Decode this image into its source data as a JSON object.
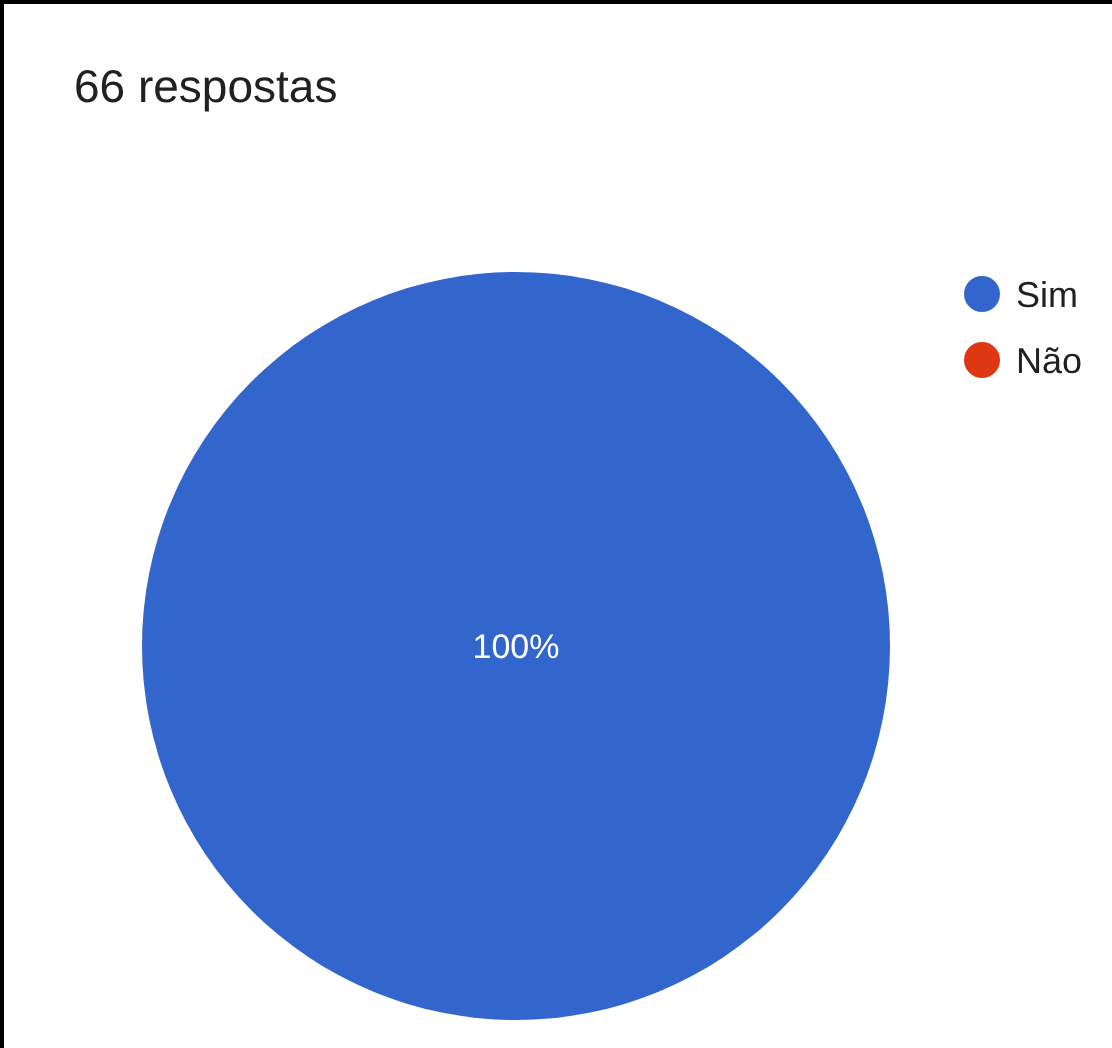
{
  "chart_data": {
    "type": "pie",
    "title": "66 respostas",
    "categories": [
      "Sim",
      "Não"
    ],
    "values": [
      100,
      0
    ],
    "colors": [
      "#3366cc",
      "#dc3912"
    ],
    "value_labels": [
      "100%",
      null
    ],
    "legend": "right"
  }
}
